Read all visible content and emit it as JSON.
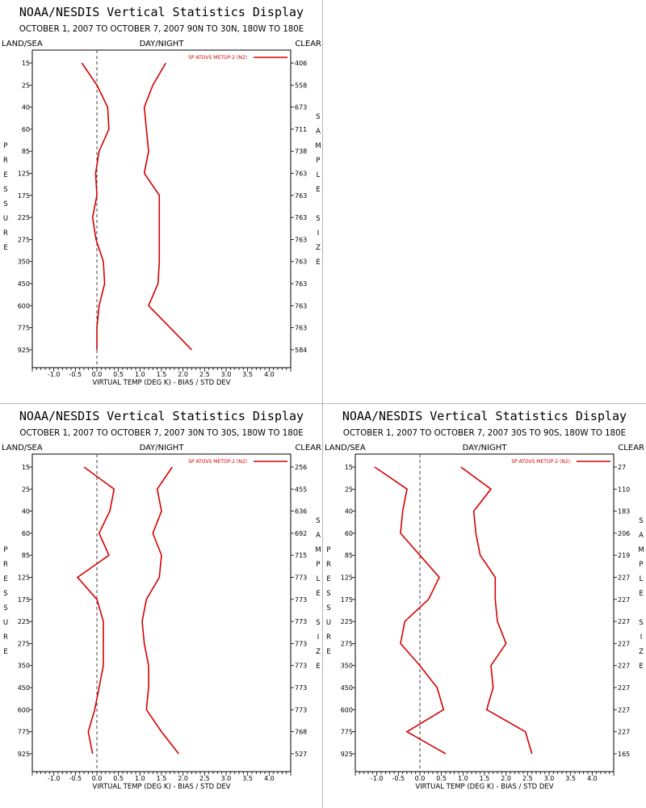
{
  "chart_data": [
    {
      "type": "line",
      "title": "NOAA/NESDIS Vertical Statistics Display",
      "subtitle": "OCTOBER 1, 2007 TO OCTOBER 7, 2007 90N TO 30N, 180W TO 180E",
      "corner_left": "LAND/SEA",
      "corner_center": "DAY/NIGHT",
      "corner_right": "CLEAR",
      "xlabel": "VIRTUAL TEMP (DEG K) - BIAS / STD DEV",
      "ylabel": "PRESSURE",
      "right_axis_label": "SAMPLE SIZE",
      "legend": "SP ATOVS METOP-2 (N2)",
      "series_color": "#d40000",
      "xlim": [
        -1.5,
        4.5
      ],
      "xticks": [
        -1.0,
        -0.5,
        0.0,
        0.5,
        1.0,
        1.5,
        2.0,
        2.5,
        3.0,
        3.5,
        4.0
      ],
      "xtick_labels": [
        "-1.0",
        "-0.5",
        "0.0",
        "0.5",
        "1.0",
        "1.5",
        "2.0",
        "2.5",
        "3.0",
        "3.5",
        "4.0"
      ],
      "pressure_levels": [
        "15",
        "25",
        "40",
        "60",
        "85",
        "125",
        "175",
        "225",
        "275",
        "350",
        "450",
        "600",
        "775",
        "925"
      ],
      "sample_sizes": [
        "406",
        "558",
        "673",
        "711",
        "738",
        "763",
        "763",
        "763",
        "763",
        "763",
        "763",
        "763",
        "763",
        "584"
      ],
      "bias": [
        -0.35,
        0.0,
        0.25,
        0.28,
        0.05,
        -0.03,
        0.0,
        -0.1,
        -0.02,
        0.15,
        0.18,
        0.05,
        0.0,
        0.0
      ],
      "std_dev": [
        1.6,
        1.3,
        1.1,
        1.15,
        1.2,
        1.1,
        1.45,
        1.45,
        1.45,
        1.45,
        1.42,
        1.2,
        1.7,
        2.2
      ]
    },
    {
      "type": "line",
      "title": "NOAA/NESDIS Vertical Statistics Display",
      "subtitle": "OCTOBER 1, 2007 TO OCTOBER 7, 2007 30N TO 30S, 180W TO 180E",
      "corner_left": "LAND/SEA",
      "corner_center": "DAY/NIGHT",
      "corner_right": "CLEAR",
      "xlabel": "VIRTUAL TEMP (DEG K) - BIAS / STD DEV",
      "ylabel": "PRESSURE",
      "right_axis_label": "SAMPLE SIZE",
      "legend": "SP ATOVS METOP-2 (N2)",
      "series_color": "#d40000",
      "xlim": [
        -1.5,
        4.5
      ],
      "xticks": [
        -1.0,
        -0.5,
        0.0,
        0.5,
        1.0,
        1.5,
        2.0,
        2.5,
        3.0,
        3.5,
        4.0
      ],
      "xtick_labels": [
        "-1.0",
        "-0.5",
        "0.0",
        "0.5",
        "1.0",
        "1.5",
        "2.0",
        "2.5",
        "3.0",
        "3.5",
        "4.0"
      ],
      "pressure_levels": [
        "15",
        "25",
        "40",
        "60",
        "85",
        "125",
        "175",
        "225",
        "275",
        "350",
        "450",
        "600",
        "775",
        "925"
      ],
      "sample_sizes": [
        "256",
        "455",
        "636",
        "692",
        "715",
        "773",
        "773",
        "773",
        "773",
        "773",
        "773",
        "773",
        "768",
        "527"
      ],
      "bias": [
        -0.3,
        0.4,
        0.3,
        0.05,
        0.28,
        -0.45,
        0.0,
        0.15,
        0.15,
        0.15,
        0.05,
        -0.05,
        -0.2,
        -0.1
      ],
      "std_dev": [
        1.75,
        1.4,
        1.5,
        1.3,
        1.5,
        1.45,
        1.15,
        1.05,
        1.1,
        1.2,
        1.2,
        1.15,
        1.5,
        1.9
      ]
    },
    {
      "type": "line",
      "title": "NOAA/NESDIS Vertical Statistics Display",
      "subtitle": "OCTOBER 1, 2007 TO OCTOBER 7, 2007 30S TO 90S, 180W TO 180E",
      "corner_left": "LAND/SEA",
      "corner_center": "DAY/NIGHT",
      "corner_right": "CLEAR",
      "xlabel": "VIRTUAL TEMP (DEG K) - BIAS / STD DEV",
      "ylabel": "PRESSURE",
      "right_axis_label": "SAMPLE SIZE",
      "legend": "SP ATOVS METOP-2 (N2)",
      "series_color": "#d40000",
      "xlim": [
        -1.5,
        4.5
      ],
      "xticks": [
        -1.0,
        -0.5,
        0.0,
        0.5,
        1.0,
        1.5,
        2.0,
        2.5,
        3.0,
        3.5,
        4.0
      ],
      "xtick_labels": [
        "-1.0",
        "-0.5",
        "0.0",
        "0.5",
        "1.0",
        "1.5",
        "2.0",
        "2.5",
        "3.0",
        "3.5",
        "4.0"
      ],
      "pressure_levels": [
        "15",
        "25",
        "40",
        "60",
        "85",
        "125",
        "175",
        "225",
        "275",
        "350",
        "450",
        "600",
        "775",
        "925"
      ],
      "sample_sizes": [
        "27",
        "110",
        "183",
        "206",
        "219",
        "227",
        "227",
        "227",
        "227",
        "227",
        "227",
        "227",
        "227",
        "165"
      ],
      "bias": [
        -1.05,
        -0.3,
        -0.4,
        -0.45,
        0.0,
        0.45,
        0.2,
        -0.35,
        -0.45,
        0.0,
        0.4,
        0.55,
        -0.3,
        0.6
      ],
      "std_dev": [
        0.95,
        1.65,
        1.25,
        1.3,
        1.4,
        1.75,
        1.75,
        1.8,
        2.0,
        1.65,
        1.7,
        1.55,
        2.45,
        2.6
      ]
    }
  ]
}
